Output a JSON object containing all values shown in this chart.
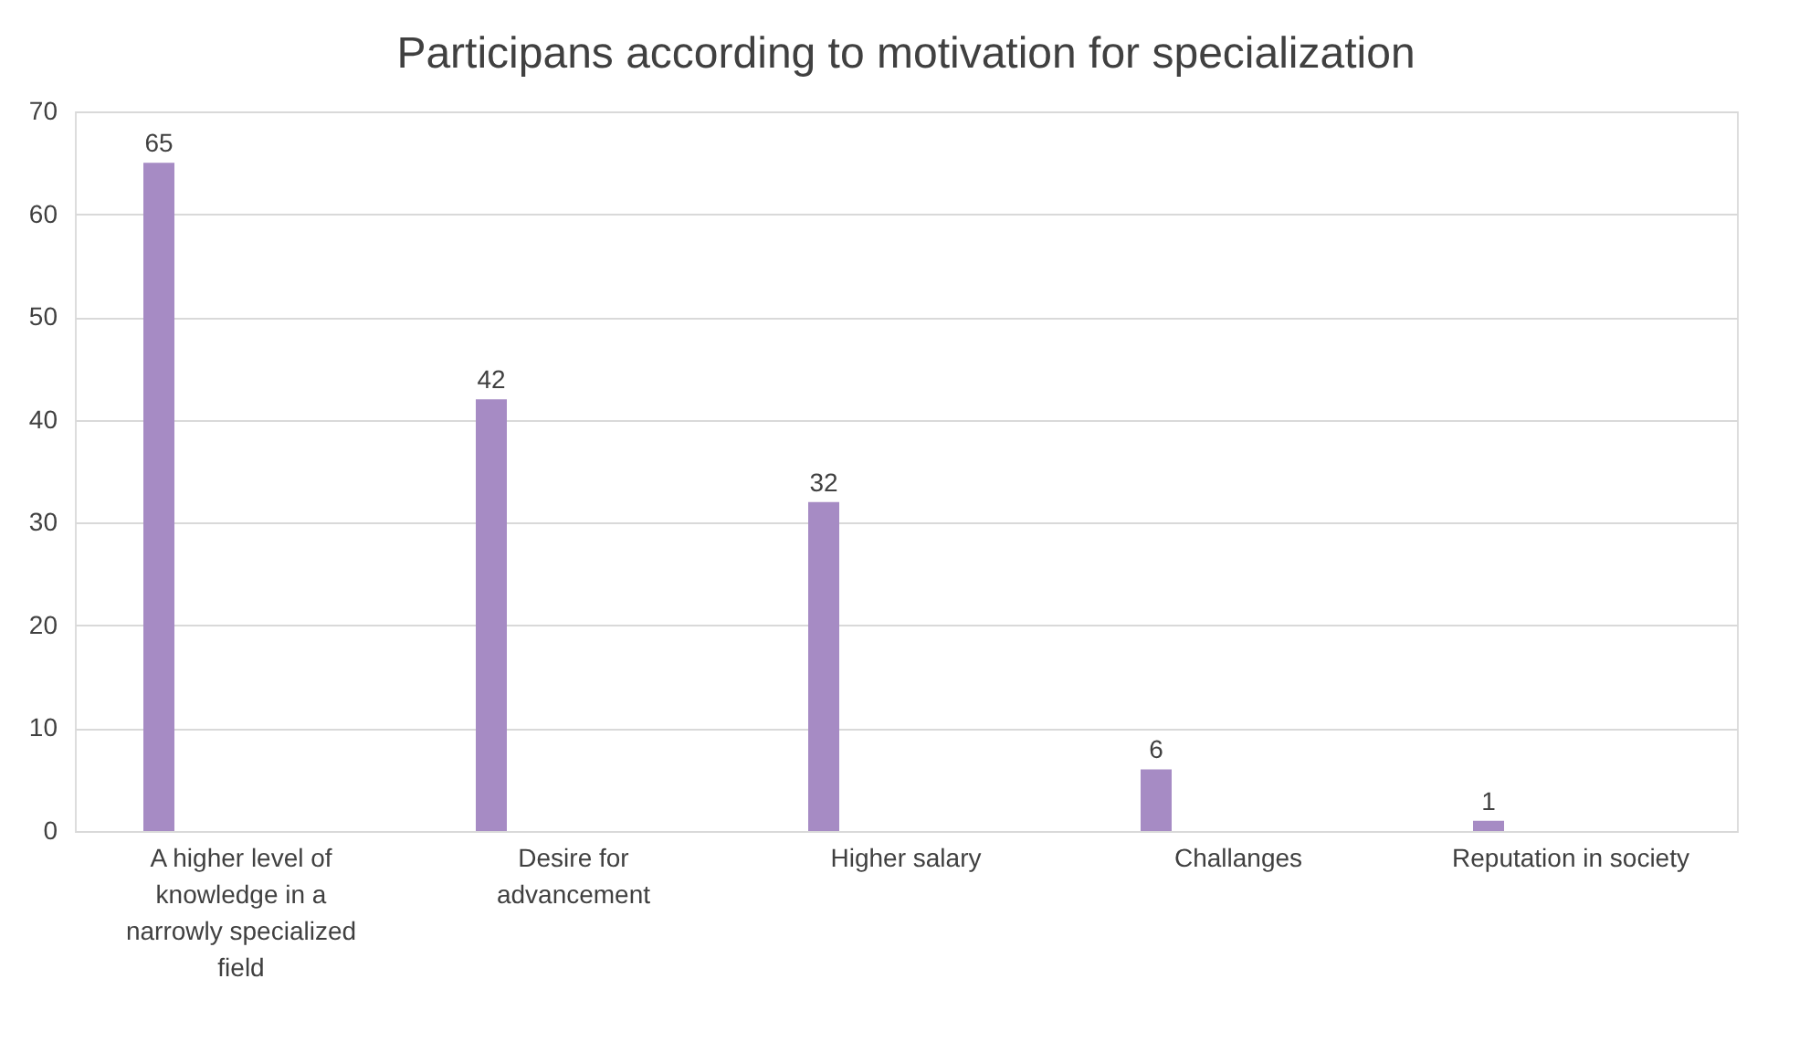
{
  "chart_data": {
    "type": "bar",
    "title": "Participans according to motivation for specialization",
    "categories": [
      "A higher level of knowledge in a narrowly specialized field",
      "Desire for advancement",
      "Higher salary",
      "Challanges",
      "Reputation in society"
    ],
    "values": [
      65,
      42,
      32,
      6,
      1
    ],
    "color": "#a68bc4",
    "ylim": [
      0,
      70
    ],
    "yticks": [
      0,
      10,
      20,
      30,
      40,
      50,
      60,
      70
    ],
    "grid": "y",
    "data_labels": true
  }
}
